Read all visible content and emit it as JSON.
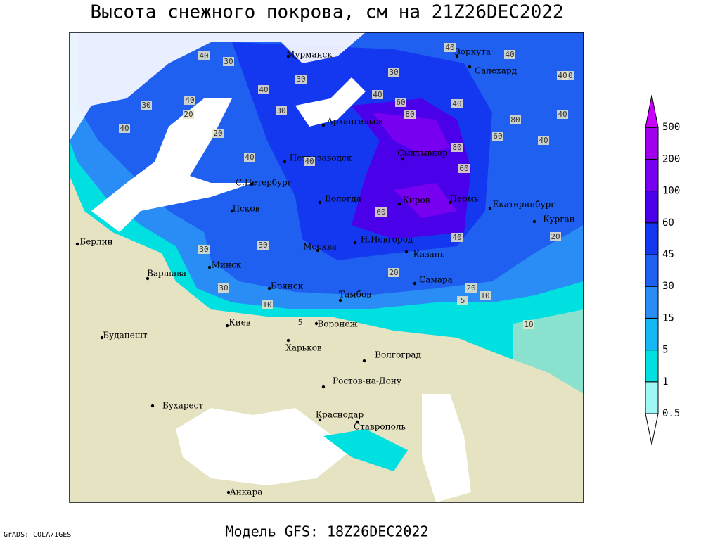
{
  "map": {
    "title": "Высота снежного покрова, см на 21Z26DEC2022",
    "footer": "Модель GFS: 18Z26DEC2022",
    "credit": "GrADS: COLA/IGES",
    "legend": {
      "levels": [
        0.5,
        1,
        5,
        15,
        30,
        45,
        60,
        100,
        200,
        500
      ],
      "colors": [
        "#ffffff",
        "#a0f5f5",
        "#00e0e0",
        "#14b8f5",
        "#2a8cf5",
        "#2060f0",
        "#1438f0",
        "#4a00e8",
        "#7800f0",
        "#a000ee",
        "#c800ff"
      ]
    },
    "cities": [
      "Мурманск",
      "Воркута",
      "Салехард",
      "Архангельск",
      "Петрозаводск",
      "Сыктывкар",
      "С.Петербург",
      "Вологда",
      "Киров",
      "Пермь",
      "Екатеринбург",
      "Курган",
      "Псков",
      "Н.Новгород",
      "Казань",
      "Берлин",
      "Минск",
      "Москва",
      "Варшава",
      "Самара",
      "Брянск",
      "Тамбов",
      "Киев",
      "Воронеж",
      "Будапешт",
      "Харьков",
      "Волгоград",
      "Ростов-на-Дону",
      "Бухарест",
      "Краснодар",
      "Ставрополь",
      "Анкара"
    ],
    "contour_labels": [
      40,
      30,
      40,
      40,
      30,
      40,
      30,
      40,
      60,
      80,
      40,
      80,
      60,
      40,
      40,
      20,
      40,
      30,
      30,
      40,
      80,
      40,
      60,
      60,
      40,
      30,
      20,
      30,
      30,
      20,
      20,
      20,
      10,
      10,
      5,
      5,
      10,
      40,
      40,
      40
    ]
  }
}
